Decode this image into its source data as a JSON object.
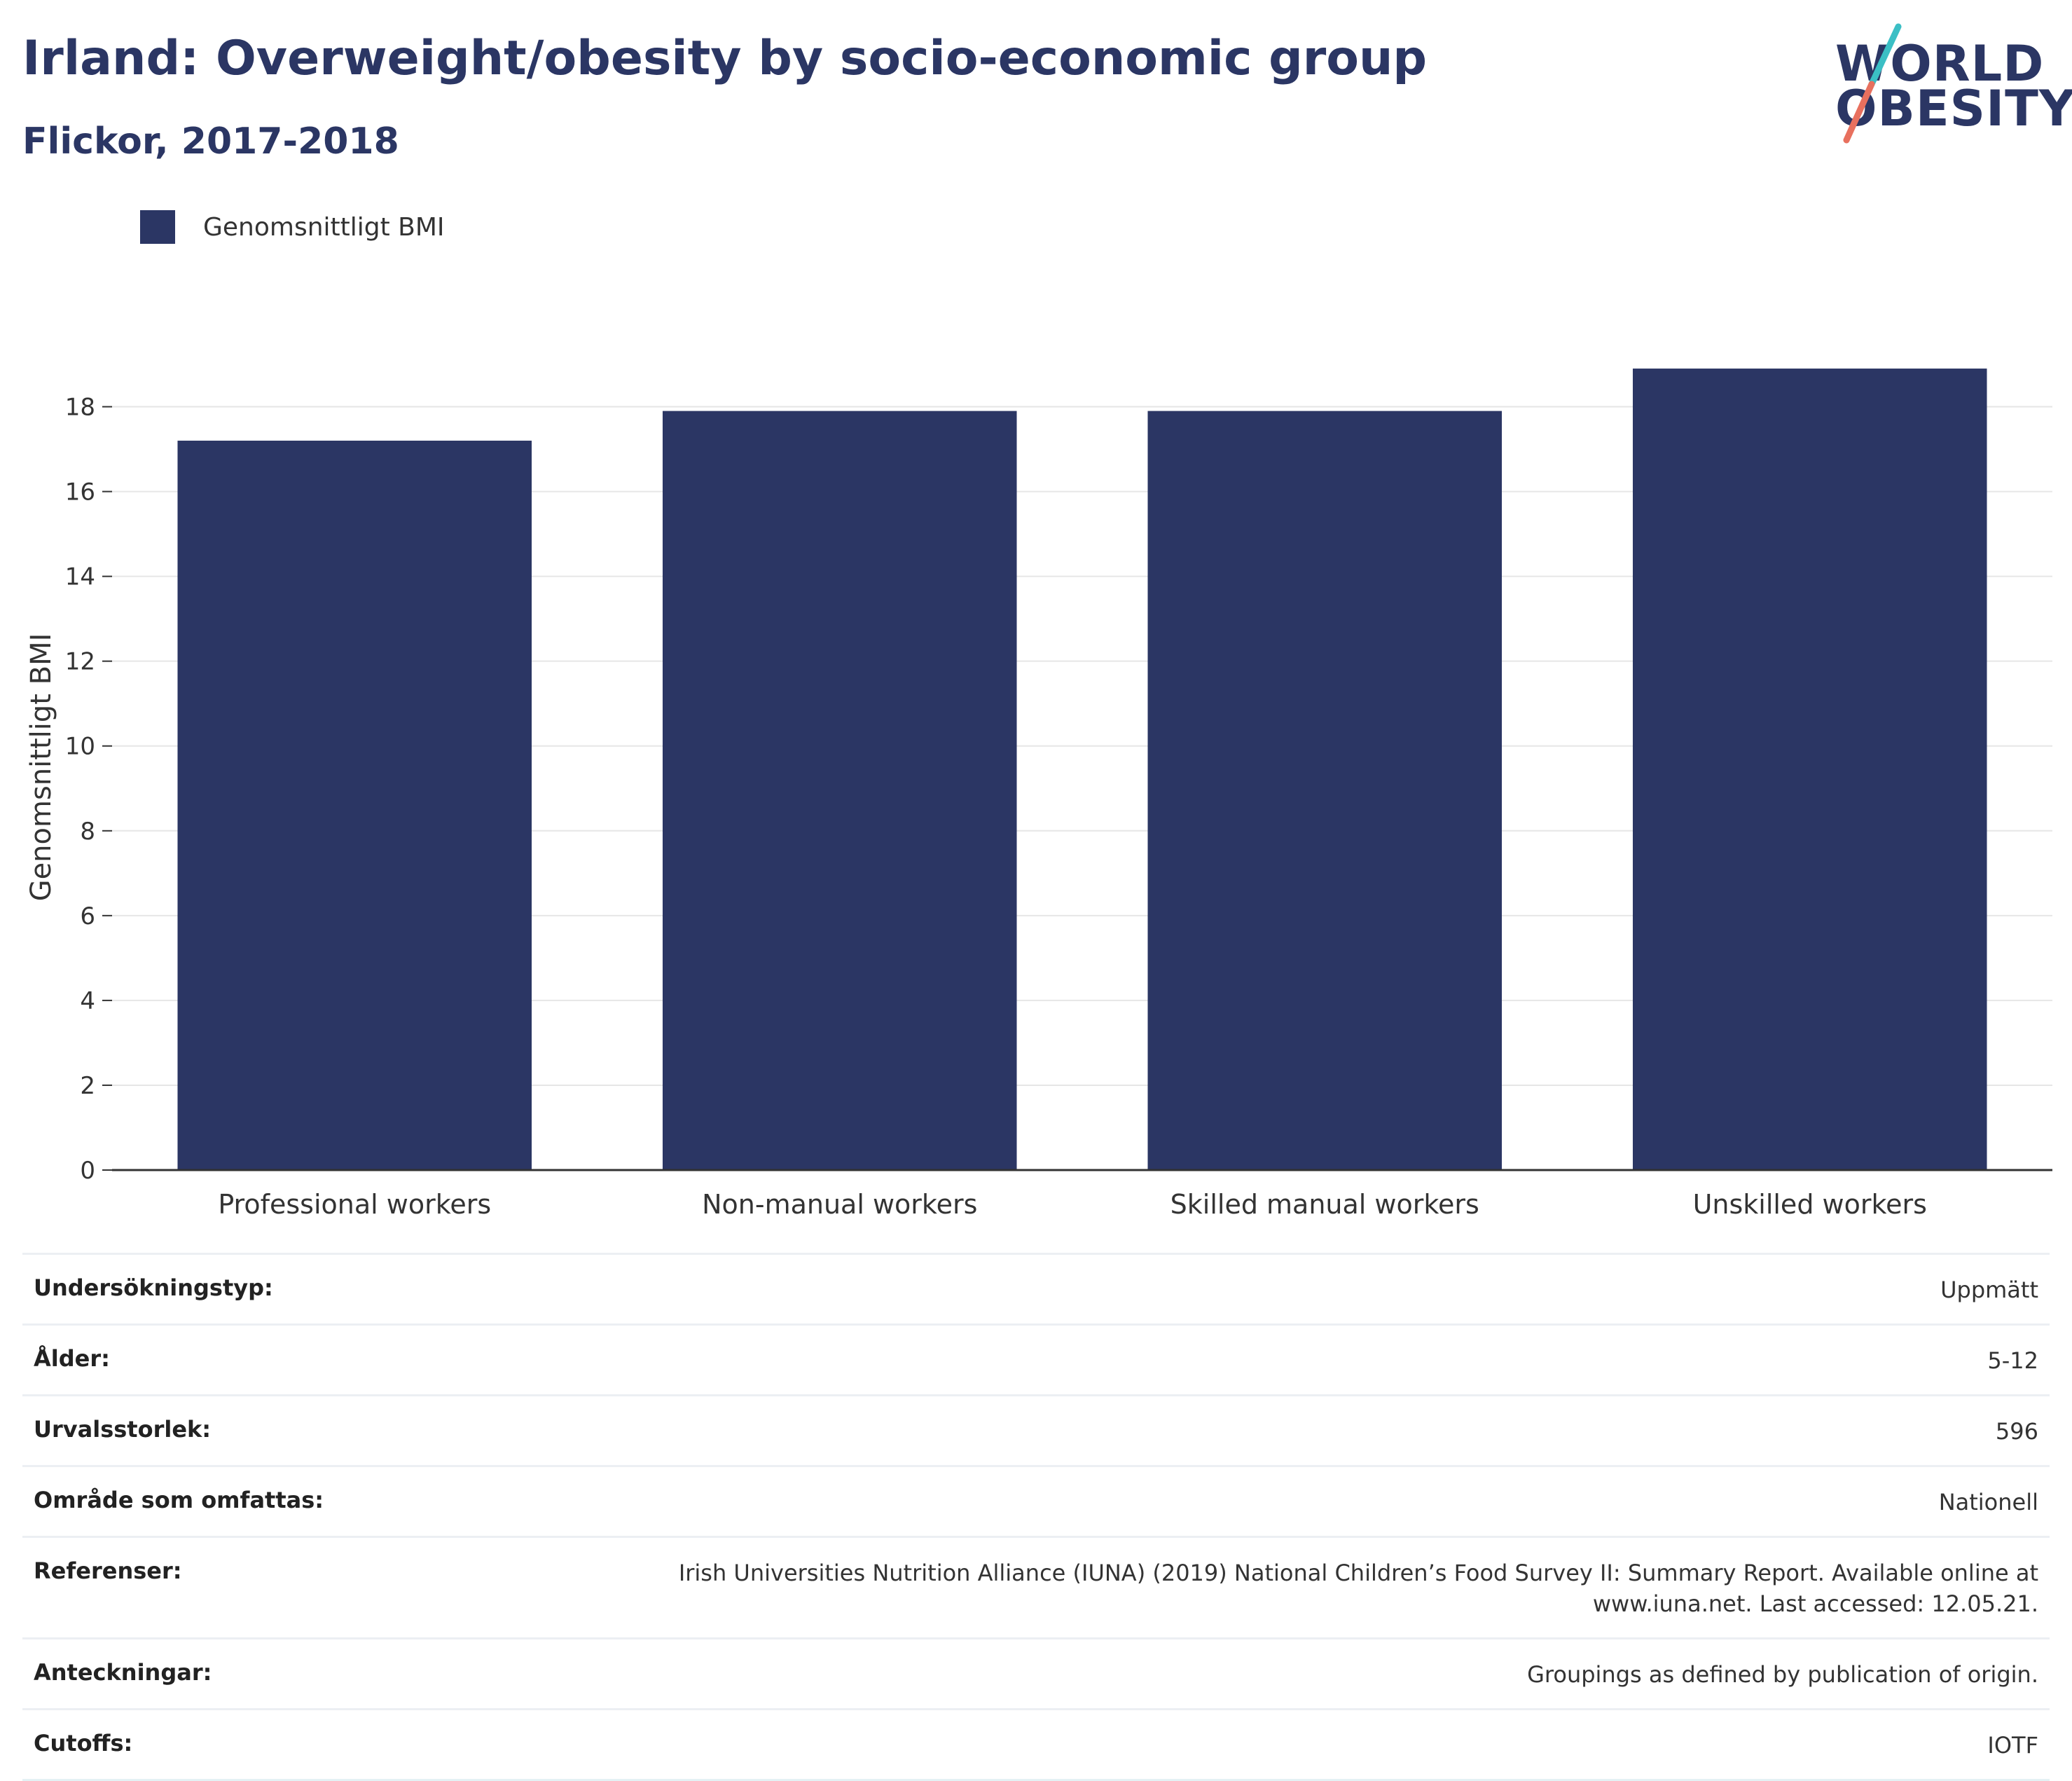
{
  "header": {
    "title": "Irland: Overweight/obesity by socio-economic group",
    "subtitle": "Flickor, 2017-2018"
  },
  "logo": {
    "line1": "WORLD",
    "line2": "OBESITY"
  },
  "legend": {
    "label": "Genomsnittligt BMI",
    "color": "#2b3664"
  },
  "chart_data": {
    "type": "bar",
    "categories": [
      "Professional workers",
      "Non-manual workers",
      "Skilled manual workers",
      "Unskilled workers"
    ],
    "series": [
      {
        "name": "Genomsnittligt BMI",
        "values": [
          17.2,
          17.9,
          17.9,
          18.9
        ]
      }
    ],
    "ylabel": "Genomsnittligt BMI",
    "xlabel": "",
    "ylim": [
      0,
      19
    ],
    "yticks": [
      0,
      2,
      4,
      6,
      8,
      10,
      12,
      14,
      16,
      18
    ],
    "grid": true,
    "legend_position": "top-left",
    "bar_color": "#2b3664"
  },
  "info": [
    {
      "label": "Undersökningstyp:",
      "value": "Uppmätt"
    },
    {
      "label": "Ålder:",
      "value": "5-12"
    },
    {
      "label": "Urvalsstorlek:",
      "value": "596"
    },
    {
      "label": "Område som omfattas:",
      "value": "Nationell"
    },
    {
      "label": "Referenser:",
      "value": "Irish Universities Nutrition Alliance (IUNA) (2019) National Children’s Food Survey II: Summary Report. Available online at www.iuna.net. Last accessed: 12.05.21."
    },
    {
      "label": "Anteckningar:",
      "value": "Groupings as defined by publication of origin."
    },
    {
      "label": "Cutoffs:",
      "value": "IOTF"
    }
  ]
}
